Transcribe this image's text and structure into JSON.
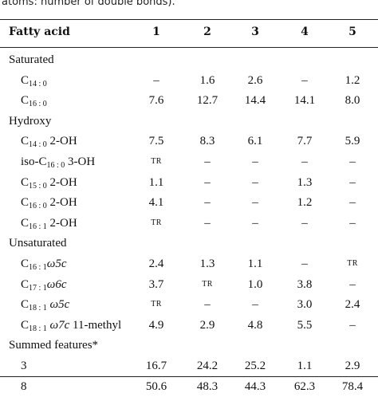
{
  "caption": "atoms: number of double bonds).",
  "header": {
    "fatty_acid": "Fatty acid",
    "cols": [
      "1",
      "2",
      "3",
      "4",
      "5"
    ]
  },
  "rows": [
    {
      "kind": "group",
      "label": "Saturated"
    },
    {
      "kind": "data",
      "label_parts": [
        {
          "t": "C"
        },
        {
          "t": "14 : 0",
          "sub": true
        }
      ],
      "values": [
        "–",
        "1.6",
        "2.6",
        "–",
        "1.2"
      ]
    },
    {
      "kind": "data",
      "label_parts": [
        {
          "t": "C"
        },
        {
          "t": "16 : 0",
          "sub": true
        }
      ],
      "values": [
        "7.6",
        "12.7",
        "14.4",
        "14.1",
        "8.0"
      ]
    },
    {
      "kind": "group",
      "label": "Hydroxy"
    },
    {
      "kind": "data",
      "label_parts": [
        {
          "t": "C"
        },
        {
          "t": "14 : 0",
          "sub": true
        },
        {
          "t": " 2-OH"
        }
      ],
      "values": [
        "7.5",
        "8.3",
        "6.1",
        "7.7",
        "5.9"
      ]
    },
    {
      "kind": "data",
      "label_parts": [
        {
          "t": "iso-C"
        },
        {
          "t": "16 : 0",
          "sub": true
        },
        {
          "t": " 3-OH"
        }
      ],
      "values": [
        "TR",
        "–",
        "–",
        "–",
        "–"
      ]
    },
    {
      "kind": "data",
      "label_parts": [
        {
          "t": "C"
        },
        {
          "t": "15 : 0",
          "sub": true
        },
        {
          "t": " 2-OH"
        }
      ],
      "values": [
        "1.1",
        "–",
        "–",
        "1.3",
        "–"
      ]
    },
    {
      "kind": "data",
      "label_parts": [
        {
          "t": "C"
        },
        {
          "t": "16 : 0",
          "sub": true
        },
        {
          "t": " 2-OH"
        }
      ],
      "values": [
        "4.1",
        "–",
        "–",
        "1.2",
        "–"
      ]
    },
    {
      "kind": "data",
      "label_parts": [
        {
          "t": "C"
        },
        {
          "t": "16 : 1",
          "sub": true
        },
        {
          "t": " 2-OH"
        }
      ],
      "values": [
        "TR",
        "–",
        "–",
        "–",
        "–"
      ]
    },
    {
      "kind": "group",
      "label": "Unsaturated"
    },
    {
      "kind": "data",
      "label_parts": [
        {
          "t": "C"
        },
        {
          "t": "16 : 1",
          "sub": true
        },
        {
          "t": "ω5c",
          "it": true
        }
      ],
      "values": [
        "2.4",
        "1.3",
        "1.1",
        "–",
        "TR"
      ]
    },
    {
      "kind": "data",
      "label_parts": [
        {
          "t": "C"
        },
        {
          "t": "17 : 1",
          "sub": true
        },
        {
          "t": "ω6c",
          "it": true
        }
      ],
      "values": [
        "3.7",
        "TR",
        "1.0",
        "3.8",
        "–"
      ]
    },
    {
      "kind": "data",
      "label_parts": [
        {
          "t": "C"
        },
        {
          "t": "18 : 1",
          "sub": true
        },
        {
          "t": " "
        },
        {
          "t": "ω5c",
          "it": true
        }
      ],
      "values": [
        "TR",
        "–",
        "–",
        "3.0",
        "2.4"
      ]
    },
    {
      "kind": "data",
      "label_parts": [
        {
          "t": "C"
        },
        {
          "t": "18 : 1",
          "sub": true
        },
        {
          "t": " "
        },
        {
          "t": "ω7c",
          "it": true
        },
        {
          "t": " 11-methyl"
        }
      ],
      "values": [
        "4.9",
        "2.9",
        "4.8",
        "5.5",
        "–"
      ]
    },
    {
      "kind": "group",
      "label": "Summed features*"
    },
    {
      "kind": "data",
      "label_parts": [
        {
          "t": "3"
        }
      ],
      "values": [
        "16.7",
        "24.2",
        "25.2",
        "1.1",
        "2.9"
      ]
    },
    {
      "kind": "data",
      "label_parts": [
        {
          "t": "8"
        }
      ],
      "values": [
        "50.6",
        "48.3",
        "44.3",
        "62.3",
        "78.4"
      ]
    }
  ]
}
